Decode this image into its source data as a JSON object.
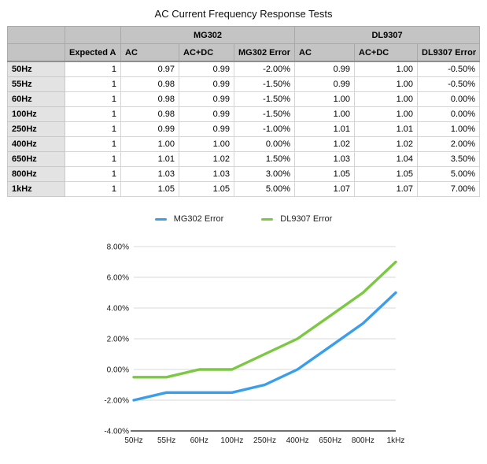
{
  "title": "AC Current Frequency Response Tests",
  "table": {
    "group_headers": [
      {
        "label": "",
        "span": 1
      },
      {
        "label": "",
        "span": 1
      },
      {
        "label": "MG302",
        "span": 3
      },
      {
        "label": "DL9307",
        "span": 3
      }
    ],
    "column_headers": [
      "",
      "Expected A",
      "AC",
      "AC+DC",
      "MG302 Error",
      "AC",
      "AC+DC",
      "DL9307 Error"
    ],
    "rows": [
      {
        "label": "50Hz",
        "values": [
          "1",
          "0.97",
          "0.99",
          "-2.00%",
          "0.99",
          "1.00",
          "-0.50%"
        ]
      },
      {
        "label": "55Hz",
        "values": [
          "1",
          "0.98",
          "0.99",
          "-1.50%",
          "0.99",
          "1.00",
          "-0.50%"
        ]
      },
      {
        "label": "60Hz",
        "values": [
          "1",
          "0.98",
          "0.99",
          "-1.50%",
          "1.00",
          "1.00",
          "0.00%"
        ]
      },
      {
        "label": "100Hz",
        "values": [
          "1",
          "0.98",
          "0.99",
          "-1.50%",
          "1.00",
          "1.00",
          "0.00%"
        ]
      },
      {
        "label": "250Hz",
        "values": [
          "1",
          "0.99",
          "0.99",
          "-1.00%",
          "1.01",
          "1.01",
          "1.00%"
        ]
      },
      {
        "label": "400Hz",
        "values": [
          "1",
          "1.00",
          "1.00",
          "0.00%",
          "1.02",
          "1.02",
          "2.00%"
        ]
      },
      {
        "label": "650Hz",
        "values": [
          "1",
          "1.01",
          "1.02",
          "1.50%",
          "1.03",
          "1.04",
          "3.50%"
        ]
      },
      {
        "label": "800Hz",
        "values": [
          "1",
          "1.03",
          "1.03",
          "3.00%",
          "1.05",
          "1.05",
          "5.00%"
        ]
      },
      {
        "label": "1kHz",
        "values": [
          "1",
          "1.05",
          "1.05",
          "5.00%",
          "1.07",
          "1.07",
          "7.00%"
        ]
      }
    ]
  },
  "chart_data": {
    "type": "line",
    "title": "",
    "x": [
      "50Hz",
      "55Hz",
      "60Hz",
      "100Hz",
      "250Hz",
      "400Hz",
      "650Hz",
      "800Hz",
      "1kHz"
    ],
    "series": [
      {
        "name": "MG302 Error",
        "color": "#3b9eeb",
        "values": [
          -2.0,
          -1.5,
          -1.5,
          -1.5,
          -1.0,
          0.0,
          1.5,
          3.0,
          5.0
        ]
      },
      {
        "name": "DL9307 Error",
        "color": "#7cc843",
        "values": [
          -0.5,
          -0.5,
          0.0,
          0.0,
          1.0,
          2.0,
          3.5,
          5.0,
          7.0
        ]
      }
    ],
    "ylim": [
      -4,
      8
    ],
    "ytick_step": 2,
    "yticks": [
      "8.00%",
      "6.00%",
      "4.00%",
      "2.00%",
      "0.00%",
      "-2.00%",
      "-4.00%"
    ],
    "grid": true,
    "legend_position": "top",
    "colors": {
      "grid": "#d9d9d9",
      "axis": "#6f6f6f",
      "tick_text": "#1a1a1a"
    }
  }
}
